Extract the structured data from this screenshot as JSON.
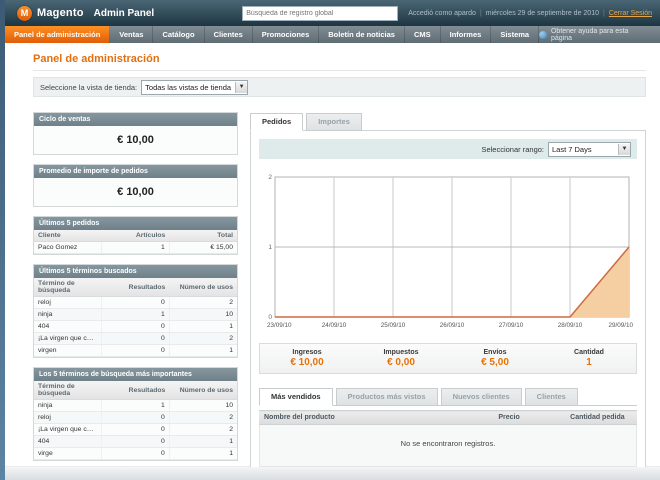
{
  "colors": {
    "accent_orange": "#e87206",
    "title_orange": "#e26f10",
    "active_tab_orange": "#e25c07",
    "chart_line": "#cd6a42",
    "chart_fill": "#f5cfa2",
    "header_bg": "#1e3642",
    "nav_bg": "#5e6c74"
  },
  "header": {
    "brand": "Magento",
    "brand_suffix": "Admin Panel",
    "search_placeholder": "Búsqueda de registro global",
    "logged_in_as": "Accedió como apardo",
    "date": "miércoles 29 de septiembre de 2010",
    "logout_label": "Cerrar Sesión",
    "separator": "|"
  },
  "nav": {
    "items": [
      {
        "label": "Panel de administración",
        "active": true
      },
      {
        "label": "Ventas",
        "active": false
      },
      {
        "label": "Catálogo",
        "active": false
      },
      {
        "label": "Clientes",
        "active": false
      },
      {
        "label": "Promociones",
        "active": false
      },
      {
        "label": "Boletín de noticias",
        "active": false
      },
      {
        "label": "CMS",
        "active": false
      },
      {
        "label": "Informes",
        "active": false
      },
      {
        "label": "Sistema",
        "active": false
      }
    ],
    "help_label": "Obtener ayuda para esta página"
  },
  "page": {
    "title": "Panel de administración",
    "store_view_label": "Seleccione la vista de tienda:",
    "store_view_value": "Todas las vistas de tienda"
  },
  "sidebar": {
    "lifetime_sales": {
      "title": "Ciclo de ventas",
      "value": "€ 10,00"
    },
    "average_orders": {
      "title": "Promedio de importe de pedidos",
      "value": "€ 10,00"
    },
    "last_orders": {
      "title": "Últimos 5 pedidos",
      "columns": [
        "Cliente",
        "Artículos",
        "Total"
      ],
      "rows": [
        [
          "Paco Gomez",
          "1",
          "€ 15,00"
        ]
      ]
    },
    "last_search_terms": {
      "title": "Últimos 5 términos buscados",
      "columns": [
        "Término de búsqueda",
        "Resultados",
        "Número de usos"
      ],
      "rows": [
        [
          "reloj",
          "0",
          "2"
        ],
        [
          "ninja",
          "1",
          "10"
        ],
        [
          "404",
          "0",
          "1"
        ],
        [
          "¡La virgen que cuadro!",
          "0",
          "2"
        ],
        [
          "virgen",
          "0",
          "1"
        ]
      ]
    },
    "top_search_terms": {
      "title": "Los 5 términos de búsqueda más importantes",
      "columns": [
        "Término de búsqueda",
        "Resultados",
        "Número de usos"
      ],
      "rows": [
        [
          "ninja",
          "1",
          "10"
        ],
        [
          "reloj",
          "0",
          "2"
        ],
        [
          "¡La virgen que cuadro!",
          "0",
          "2"
        ],
        [
          "404",
          "0",
          "1"
        ],
        [
          "virge",
          "0",
          "1"
        ]
      ]
    }
  },
  "main": {
    "tabs": [
      {
        "label": "Pedidos",
        "active": true
      },
      {
        "label": "Importes",
        "active": false
      }
    ],
    "range_label": "Seleccionar rango:",
    "range_value": "Last 7 Days",
    "totals": [
      {
        "label": "Ingresos",
        "value": "€ 10,00"
      },
      {
        "label": "Impuestos",
        "value": "€ 0,00"
      },
      {
        "label": "Envíos",
        "value": "€ 5,00"
      },
      {
        "label": "Cantidad",
        "value": "1"
      }
    ],
    "grid_tabs": [
      {
        "label": "Más vendidos",
        "active": true
      },
      {
        "label": "Productos más vistos",
        "active": false
      },
      {
        "label": "Nuevos clientes",
        "active": false
      },
      {
        "label": "Clientes",
        "active": false
      }
    ],
    "grid": {
      "columns": [
        "Nombre del producto",
        "Precio",
        "Cantidad pedida"
      ],
      "empty_text": "No se encontraron registros."
    }
  },
  "chart_data": {
    "type": "area",
    "title": "Pedidos (Last 7 Days)",
    "x": [
      "23/09/10",
      "24/09/10",
      "25/09/10",
      "26/09/10",
      "27/09/10",
      "28/09/10",
      "29/09/10"
    ],
    "values": [
      0,
      0,
      0,
      0,
      0,
      0,
      1
    ],
    "xlabel": "",
    "ylabel": "",
    "ylim": [
      0,
      2
    ],
    "yticks": [
      0,
      1,
      2
    ],
    "grid": true,
    "legend_position": "none",
    "line_color": "#cd6a42",
    "fill_color": "#f5cfa2"
  }
}
